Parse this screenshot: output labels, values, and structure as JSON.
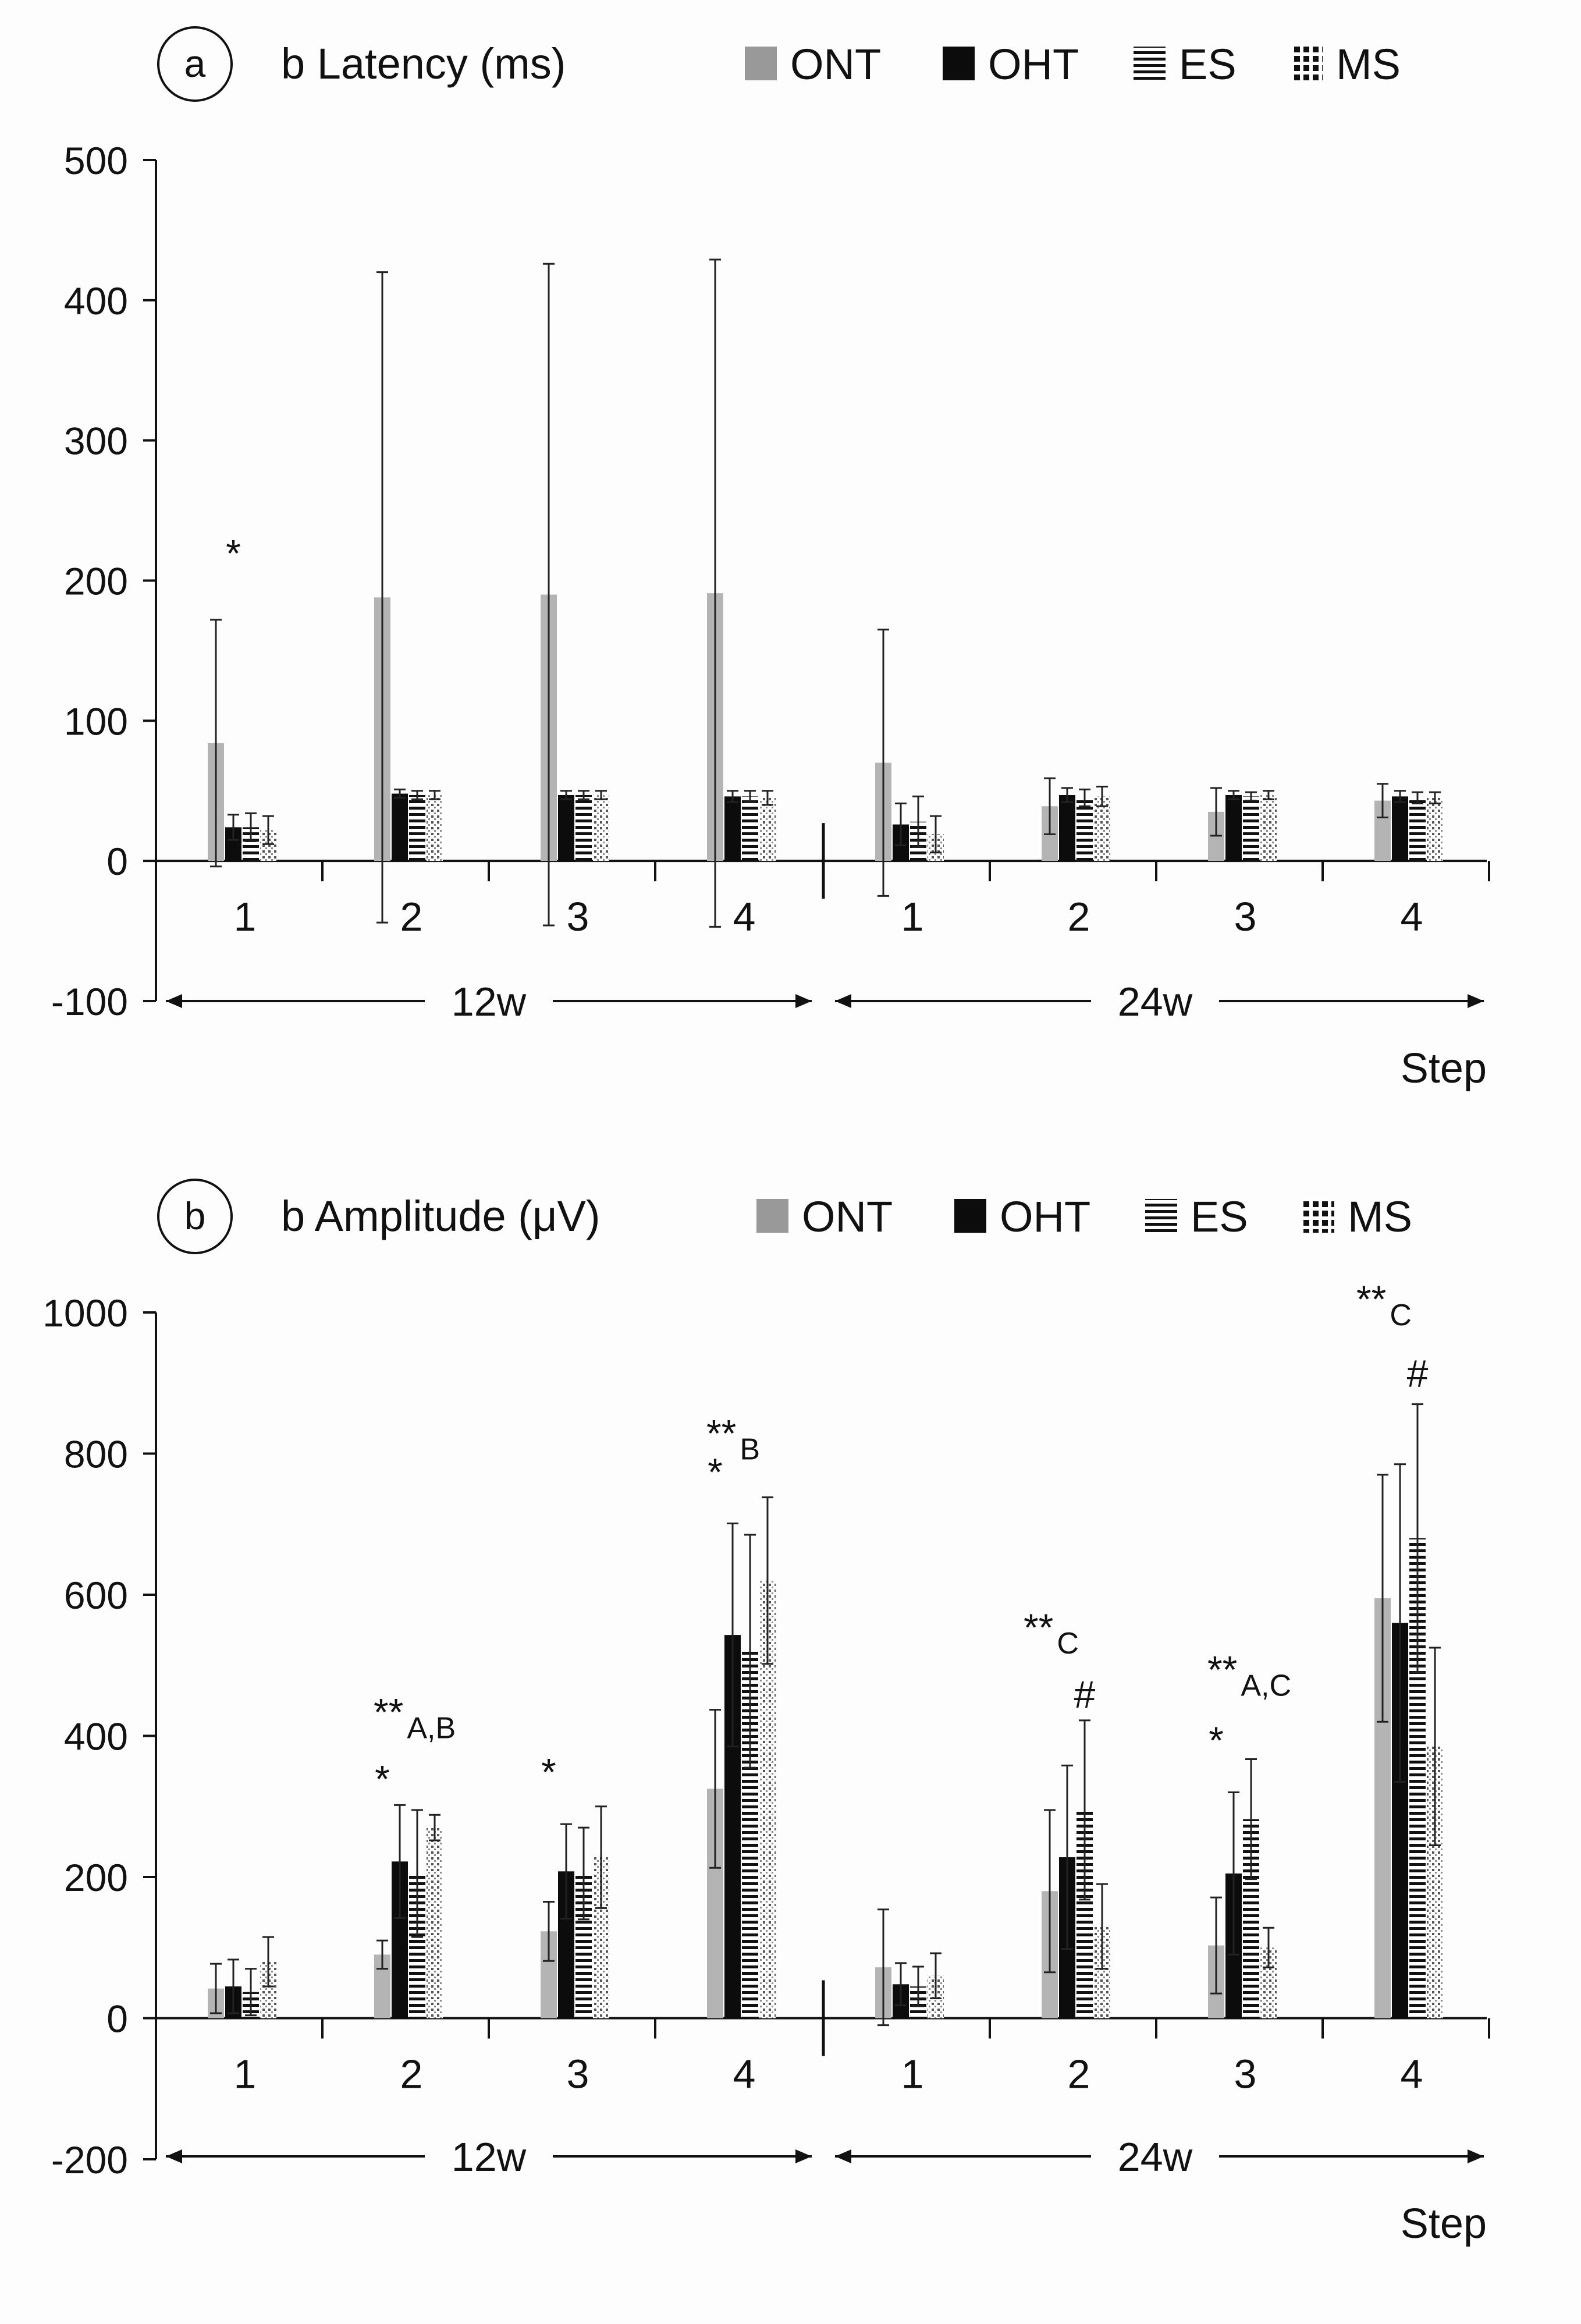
{
  "chart_data": [
    {
      "type": "bar",
      "panel_label": "a",
      "title": "b Latency (ms)",
      "xlabel": "Step",
      "ylim": [
        -100,
        500
      ],
      "yticks": [
        "500",
        "400",
        "300",
        "200",
        "100",
        "0",
        "-100"
      ],
      "groups": [
        {
          "label": "12w",
          "steps": [
            "1",
            "2",
            "3",
            "4"
          ]
        },
        {
          "label": "24w",
          "steps": [
            "1",
            "2",
            "3",
            "4"
          ]
        }
      ],
      "legend": [
        {
          "name": "ONT",
          "key": "ont"
        },
        {
          "name": "OHT",
          "key": "oht"
        },
        {
          "name": "ES",
          "key": "es"
        },
        {
          "name": "MS",
          "key": "ms"
        }
      ],
      "series": [
        {
          "name": "ONT",
          "values": [
            84,
            188,
            190,
            191,
            70,
            39,
            35,
            43
          ],
          "errors": [
            88,
            232,
            236,
            238,
            95,
            20,
            17,
            12
          ]
        },
        {
          "name": "OHT",
          "values": [
            24,
            48,
            47,
            46,
            26,
            47,
            47,
            46
          ],
          "errors": [
            9,
            3,
            3,
            4,
            15,
            5,
            3,
            4
          ]
        },
        {
          "name": "ES",
          "values": [
            24,
            47,
            47,
            46,
            28,
            45,
            46,
            45
          ],
          "errors": [
            10,
            3,
            3,
            4,
            18,
            6,
            3,
            4
          ]
        },
        {
          "name": "MS",
          "values": [
            22,
            47,
            47,
            45,
            19,
            46,
            47,
            45
          ],
          "errors": [
            10,
            3,
            3,
            5,
            13,
            7,
            3,
            4
          ]
        }
      ],
      "annotations": [
        {
          "text": "*",
          "group": 0,
          "step": 0,
          "series": 1,
          "value": 210
        }
      ]
    },
    {
      "type": "bar",
      "panel_label": "b",
      "title": "b Amplitude (μV)",
      "xlabel": "Step",
      "ylim": [
        -200,
        1000
      ],
      "yticks": [
        "1000",
        "800",
        "600",
        "400",
        "200",
        "0",
        "-200"
      ],
      "groups": [
        {
          "label": "12w",
          "steps": [
            "1",
            "2",
            "3",
            "4"
          ]
        },
        {
          "label": "24w",
          "steps": [
            "1",
            "2",
            "3",
            "4"
          ]
        }
      ],
      "legend": [
        {
          "name": "ONT",
          "key": "ont"
        },
        {
          "name": "OHT",
          "key": "oht"
        },
        {
          "name": "ES",
          "key": "es"
        },
        {
          "name": "MS",
          "key": "ms"
        }
      ],
      "series": [
        {
          "name": "ONT",
          "values": [
            42,
            90,
            123,
            325,
            72,
            180,
            103,
            595
          ],
          "errors": [
            35,
            20,
            42,
            112,
            82,
            115,
            68,
            175
          ]
        },
        {
          "name": "OHT",
          "values": [
            45,
            222,
            208,
            543,
            48,
            228,
            205,
            560
          ],
          "errors": [
            38,
            80,
            67,
            158,
            30,
            130,
            115,
            225
          ]
        },
        {
          "name": "ES",
          "values": [
            37,
            205,
            205,
            520,
            45,
            295,
            282,
            680
          ],
          "errors": [
            33,
            90,
            65,
            165,
            28,
            127,
            85,
            190
          ]
        },
        {
          "name": "MS",
          "values": [
            80,
            270,
            228,
            620,
            60,
            130,
            100,
            385
          ],
          "errors": [
            35,
            18,
            72,
            118,
            32,
            60,
            28,
            140
          ]
        }
      ],
      "annotations": [
        {
          "text": "**",
          "sub": "A,B",
          "group": 0,
          "step": 1,
          "series": 1,
          "value": 415
        },
        {
          "text": "*",
          "group": 0,
          "step": 1,
          "series": 0,
          "value": 320
        },
        {
          "text": "*",
          "group": 0,
          "step": 2,
          "series": 0,
          "value": 330
        },
        {
          "text": "**",
          "sub": "B",
          "group": 0,
          "step": 3,
          "series": 1,
          "value": 810
        },
        {
          "text": "*",
          "group": 0,
          "step": 3,
          "series": 0,
          "value": 755
        },
        {
          "text": "**",
          "sub": "C",
          "group": 1,
          "step": 1,
          "series": 0,
          "value": 535
        },
        {
          "text": "#",
          "group": 1,
          "step": 1,
          "series": 2,
          "value": 440
        },
        {
          "text": "**",
          "sub": "A,C",
          "group": 1,
          "step": 2,
          "series": 1,
          "value": 475
        },
        {
          "text": "*",
          "group": 1,
          "step": 2,
          "series": 0,
          "value": 375
        },
        {
          "text": "**",
          "sub": "C",
          "group": 1,
          "step": 3,
          "series": 0,
          "value": 1000
        },
        {
          "text": "#",
          "group": 1,
          "step": 3,
          "series": 2,
          "value": 895
        }
      ]
    }
  ]
}
